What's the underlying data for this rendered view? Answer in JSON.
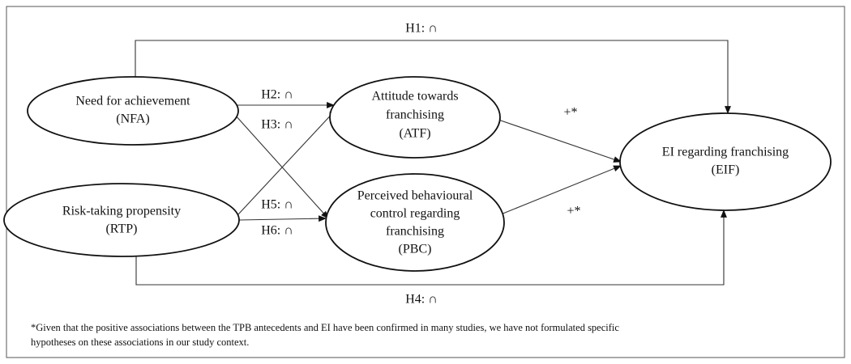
{
  "nodes": [
    {
      "lines": [
        "Need for achievement",
        "(NFA)"
      ]
    },
    {
      "lines": [
        "Risk-taking propensity",
        "(RTP)"
      ]
    },
    {
      "lines": [
        "Attitude towards",
        "franchising",
        "(ATF)"
      ]
    },
    {
      "lines": [
        "Perceived behavioural",
        "control regarding",
        "franchising",
        "(PBC)"
      ]
    },
    {
      "lines": [
        "EI regarding franchising",
        "(EIF)"
      ]
    }
  ],
  "edges": [
    {
      "label": "H1: ∩"
    },
    {
      "label": "H2: ∩"
    },
    {
      "label": "H3: ∩"
    },
    {
      "label": "H4: ∩"
    },
    {
      "label": "H5: ∩"
    },
    {
      "label": "H6: ∩"
    },
    {
      "label": "+*"
    },
    {
      "label": "+*"
    }
  ],
  "footnote": {
    "lines": [
      "*Given that the positive associations between the TPB antecedents and EI have been confirmed in many studies, we have not formulated specific",
      "hypotheses on these associations in our study context."
    ]
  }
}
